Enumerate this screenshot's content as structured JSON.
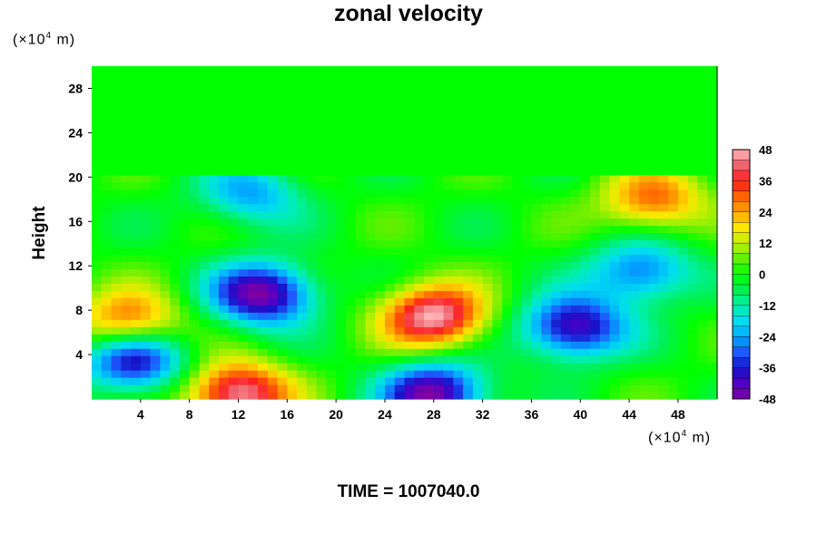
{
  "chart_data": {
    "type": "heatmap",
    "title": "zonal velocity",
    "ylabel": "Height",
    "y_unit": {
      "prefix": "(×10",
      "exp": "4",
      "suffix": " m)"
    },
    "x_unit": {
      "prefix": "(×10",
      "exp": "4",
      "suffix": " m)"
    },
    "xlim": [
      0,
      51.2
    ],
    "ylim": [
      0,
      30
    ],
    "x_ticks": [
      4,
      8,
      12,
      16,
      20,
      24,
      28,
      32,
      36,
      40,
      44,
      48
    ],
    "y_ticks": [
      4,
      8,
      12,
      16,
      20,
      24,
      28
    ],
    "colorbar": {
      "ticks": [
        48,
        36,
        24,
        12,
        0,
        -12,
        -24,
        -36,
        -48
      ],
      "range": [
        -48,
        48
      ],
      "step": 4
    },
    "field": {
      "uniform_above_height": 20.5,
      "uniform_value": 0,
      "features": [
        {
          "x": 14,
          "y": 9.5,
          "value": -48
        },
        {
          "x": 28,
          "y": 7.5,
          "value": 48
        },
        {
          "x": 28,
          "y": 0.5,
          "value": -48
        },
        {
          "x": 12,
          "y": 0.5,
          "value": 48
        },
        {
          "x": 39.5,
          "y": 6.5,
          "value": -44
        },
        {
          "x": 46,
          "y": 18,
          "value": 30
        },
        {
          "x": 3.5,
          "y": 3.5,
          "value": -40
        },
        {
          "x": 3,
          "y": 7,
          "value": 32
        },
        {
          "x": 13,
          "y": 18.5,
          "value": -24
        },
        {
          "x": 45,
          "y": 11.5,
          "value": -30
        }
      ]
    }
  },
  "footer": {
    "time": "TIME = 1007040.0"
  }
}
